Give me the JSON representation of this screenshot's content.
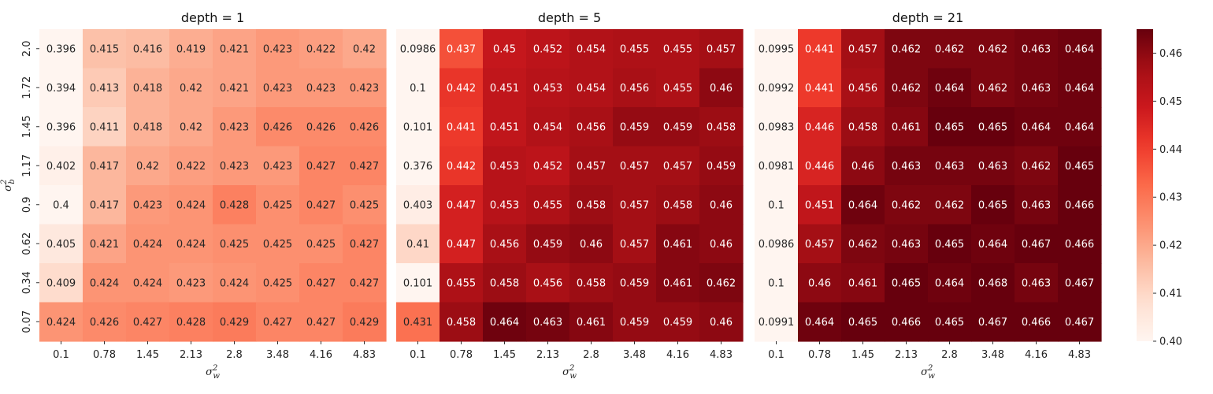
{
  "chart_data": {
    "type": "heatmap",
    "x_categories": [
      "0.1",
      "0.78",
      "1.45",
      "2.13",
      "2.8",
      "3.48",
      "4.16",
      "4.83"
    ],
    "y_categories": [
      "2.0",
      "1.72",
      "1.45",
      "1.17",
      "0.9",
      "0.62",
      "0.34",
      "0.07"
    ],
    "xlabel": "σ²_w",
    "xlabel_base": "σ",
    "xlabel_sup": "2",
    "xlabel_sub": "w",
    "ylabel": "σ²_b",
    "ylabel_base": "σ",
    "ylabel_sup": "2",
    "ylabel_sub": "b",
    "color_range": [
      0.4,
      0.465
    ],
    "colormap": "Reds",
    "colorbar_ticks": [
      "0.40",
      "0.41",
      "0.42",
      "0.43",
      "0.44",
      "0.45",
      "0.46"
    ],
    "colorbar_tick_values": [
      0.4,
      0.41,
      0.42,
      0.43,
      0.44,
      0.45,
      0.46
    ],
    "panels": [
      {
        "title": "depth = 1",
        "values": [
          [
            "0.396",
            "0.415",
            "0.416",
            "0.419",
            "0.421",
            "0.423",
            "0.422",
            "0.42"
          ],
          [
            "0.394",
            "0.413",
            "0.418",
            "0.42",
            "0.421",
            "0.423",
            "0.423",
            "0.423"
          ],
          [
            "0.396",
            "0.411",
            "0.418",
            "0.42",
            "0.423",
            "0.426",
            "0.426",
            "0.426"
          ],
          [
            "0.402",
            "0.417",
            "0.42",
            "0.422",
            "0.423",
            "0.423",
            "0.427",
            "0.427"
          ],
          [
            "0.4",
            "0.417",
            "0.423",
            "0.424",
            "0.428",
            "0.425",
            "0.427",
            "0.425"
          ],
          [
            "0.405",
            "0.421",
            "0.424",
            "0.424",
            "0.425",
            "0.425",
            "0.425",
            "0.427"
          ],
          [
            "0.409",
            "0.424",
            "0.424",
            "0.423",
            "0.424",
            "0.425",
            "0.427",
            "0.427"
          ],
          [
            "0.424",
            "0.426",
            "0.427",
            "0.428",
            "0.429",
            "0.427",
            "0.427",
            "0.429"
          ]
        ]
      },
      {
        "title": "depth = 5",
        "values": [
          [
            "0.0986",
            "0.437",
            "0.45",
            "0.452",
            "0.454",
            "0.455",
            "0.455",
            "0.457"
          ],
          [
            "0.1",
            "0.442",
            "0.451",
            "0.453",
            "0.454",
            "0.456",
            "0.455",
            "0.46"
          ],
          [
            "0.101",
            "0.441",
            "0.451",
            "0.454",
            "0.456",
            "0.459",
            "0.459",
            "0.458"
          ],
          [
            "0.376",
            "0.442",
            "0.453",
            "0.452",
            "0.457",
            "0.457",
            "0.457",
            "0.459"
          ],
          [
            "0.403",
            "0.447",
            "0.453",
            "0.455",
            "0.458",
            "0.457",
            "0.458",
            "0.46"
          ],
          [
            "0.41",
            "0.447",
            "0.456",
            "0.459",
            "0.46",
            "0.457",
            "0.461",
            "0.46"
          ],
          [
            "0.101",
            "0.455",
            "0.458",
            "0.456",
            "0.458",
            "0.459",
            "0.461",
            "0.462"
          ],
          [
            "0.431",
            "0.458",
            "0.464",
            "0.463",
            "0.461",
            "0.459",
            "0.459",
            "0.46"
          ]
        ]
      },
      {
        "title": "depth = 21",
        "values": [
          [
            "0.0995",
            "0.441",
            "0.457",
            "0.462",
            "0.462",
            "0.462",
            "0.463",
            "0.464"
          ],
          [
            "0.0992",
            "0.441",
            "0.456",
            "0.462",
            "0.464",
            "0.462",
            "0.463",
            "0.464"
          ],
          [
            "0.0983",
            "0.446",
            "0.458",
            "0.461",
            "0.465",
            "0.465",
            "0.464",
            "0.464"
          ],
          [
            "0.0981",
            "0.446",
            "0.46",
            "0.463",
            "0.463",
            "0.463",
            "0.462",
            "0.465"
          ],
          [
            "0.1",
            "0.451",
            "0.464",
            "0.462",
            "0.462",
            "0.465",
            "0.463",
            "0.466"
          ],
          [
            "0.0986",
            "0.457",
            "0.462",
            "0.463",
            "0.465",
            "0.464",
            "0.467",
            "0.466"
          ],
          [
            "0.1",
            "0.46",
            "0.461",
            "0.465",
            "0.464",
            "0.468",
            "0.463",
            "0.467"
          ],
          [
            "0.0991",
            "0.464",
            "0.465",
            "0.466",
            "0.465",
            "0.467",
            "0.466",
            "0.467"
          ]
        ]
      }
    ]
  }
}
